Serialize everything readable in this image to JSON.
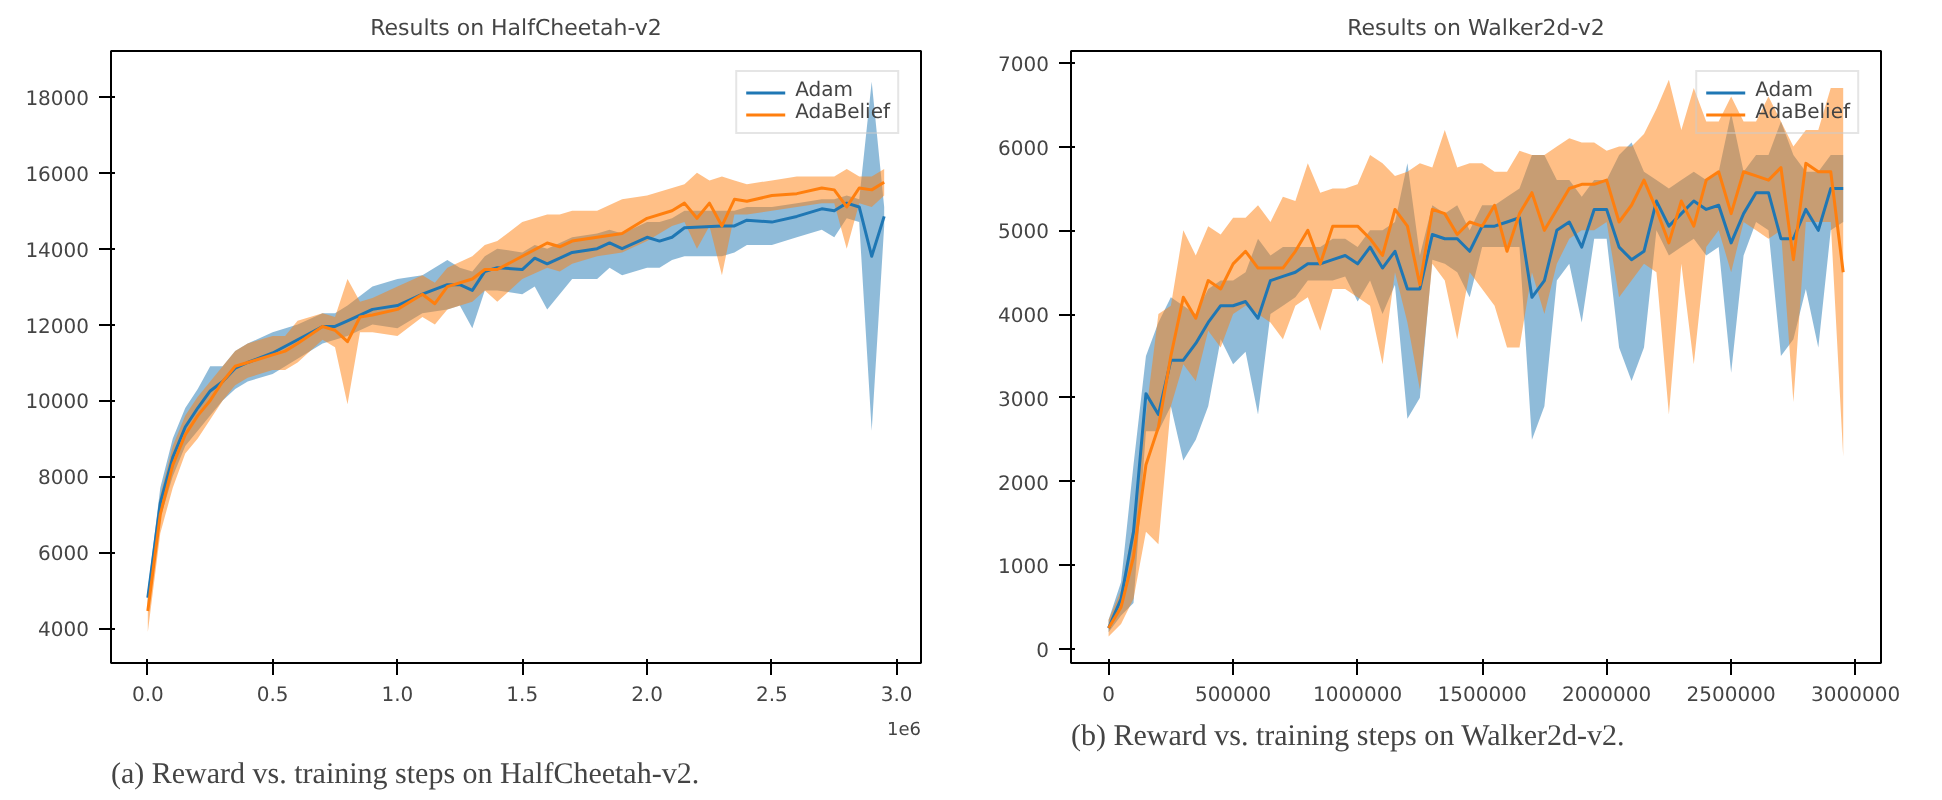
{
  "chart_data": [
    {
      "type": "line",
      "title": "Results on HalfCheetah-v2",
      "xlim": [
        -0.1475,
        3.0975
      ],
      "ylim": [
        3080,
        19210
      ],
      "xticks": [
        {
          "value": 0,
          "label": "0.0"
        },
        0.5,
        {
          "value": 1,
          "label": "1.0"
        },
        1.5,
        {
          "value": 2,
          "label": "2.0"
        },
        2.5,
        {
          "value": 3,
          "label": "3.0"
        }
      ],
      "yticks": [
        4000,
        6000,
        8000,
        10000,
        12000,
        14000,
        16000,
        18000
      ],
      "legend": "top right",
      "grid": false,
      "annotations": [
        "1e6",
        "(a) Reward vs. training steps on HalfCheetah-v2."
      ],
      "series": [
        {
          "name": "Adam",
          "color": "#1f77b4",
          "x": [
            0,
            0.05,
            0.1,
            0.15,
            0.2,
            0.25,
            0.3,
            0.35,
            0.4,
            0.5,
            0.6,
            0.7,
            0.75,
            0.8,
            0.9,
            1.0,
            1.1,
            1.2,
            1.25,
            1.3,
            1.35,
            1.4,
            1.5,
            1.55,
            1.6,
            1.7,
            1.8,
            1.85,
            1.9,
            2.0,
            2.05,
            2.1,
            2.15,
            2.3,
            2.35,
            2.4,
            2.5,
            2.6,
            2.7,
            2.75,
            2.8,
            2.85,
            2.9,
            2.95
          ],
          "values": [
            4800,
            7300,
            8500,
            9300,
            9800,
            10250,
            10500,
            10850,
            11000,
            11250,
            11600,
            11950,
            11950,
            12100,
            12400,
            12500,
            12800,
            13050,
            13050,
            12900,
            13400,
            13500,
            13450,
            13750,
            13600,
            13900,
            14000,
            14150,
            14000,
            14300,
            14200,
            14300,
            14550,
            14600,
            14600,
            14750,
            14700,
            14850,
            15050,
            15000,
            15200,
            15100,
            13800,
            14850
          ],
          "lower": [
            4600,
            6900,
            8000,
            8800,
            9200,
            9600,
            10000,
            10300,
            10500,
            10700,
            11100,
            11500,
            11600,
            11700,
            12000,
            11900,
            12300,
            12400,
            12500,
            11900,
            12900,
            12900,
            12800,
            13000,
            12400,
            13200,
            13200,
            13500,
            13300,
            13500,
            13500,
            13700,
            13800,
            13800,
            13900,
            14100,
            14100,
            14300,
            14500,
            14300,
            14800,
            14700,
            9200,
            14600
          ],
          "upper": [
            5000,
            7700,
            9000,
            9800,
            10300,
            10900,
            10900,
            11300,
            11500,
            11800,
            12000,
            12300,
            12300,
            12500,
            13000,
            13200,
            13300,
            13700,
            13500,
            13400,
            13800,
            14000,
            13900,
            14100,
            14000,
            14300,
            14400,
            14500,
            14400,
            14700,
            14700,
            14800,
            15000,
            15000,
            15000,
            15100,
            15100,
            15200,
            15300,
            15300,
            15400,
            15300,
            18400,
            15100
          ]
        },
        {
          "name": "AdaBelief",
          "color": "#ff7f0e",
          "x": [
            0,
            0.05,
            0.1,
            0.15,
            0.2,
            0.25,
            0.3,
            0.35,
            0.4,
            0.5,
            0.55,
            0.6,
            0.7,
            0.75,
            0.8,
            0.85,
            0.9,
            1.0,
            1.1,
            1.15,
            1.2,
            1.3,
            1.35,
            1.4,
            1.5,
            1.6,
            1.65,
            1.7,
            1.8,
            1.9,
            2.0,
            2.1,
            2.15,
            2.2,
            2.25,
            2.3,
            2.35,
            2.4,
            2.5,
            2.6,
            2.7,
            2.75,
            2.8,
            2.85,
            2.9,
            2.95
          ],
          "values": [
            4450,
            7000,
            8300,
            9100,
            9600,
            10000,
            10500,
            10900,
            11000,
            11200,
            11300,
            11500,
            11950,
            11850,
            11550,
            12200,
            12250,
            12400,
            12800,
            12550,
            13000,
            13200,
            13450,
            13450,
            13800,
            14150,
            14050,
            14200,
            14300,
            14400,
            14800,
            15000,
            15200,
            14800,
            15200,
            14600,
            15300,
            15250,
            15400,
            15450,
            15600,
            15550,
            15100,
            15600,
            15550,
            15750
          ],
          "lower": [
            3900,
            6500,
            7700,
            8600,
            9000,
            9500,
            10000,
            10400,
            10600,
            10800,
            10800,
            11000,
            11600,
            11400,
            9900,
            11800,
            11800,
            11700,
            12200,
            12000,
            12400,
            12600,
            12900,
            12600,
            13200,
            13500,
            13400,
            13600,
            13800,
            13900,
            14200,
            14600,
            14700,
            14000,
            14600,
            13300,
            14900,
            14900,
            15000,
            15100,
            15200,
            15200,
            14000,
            15200,
            15100,
            15400
          ],
          "upper": [
            4900,
            7500,
            8800,
            9600,
            10100,
            10500,
            10900,
            11300,
            11500,
            11700,
            11700,
            12100,
            12300,
            12200,
            13200,
            12600,
            12700,
            13000,
            13300,
            13100,
            13500,
            13800,
            14100,
            14200,
            14700,
            14900,
            14900,
            15000,
            15000,
            15300,
            15400,
            15600,
            15700,
            16000,
            15800,
            15900,
            15800,
            15700,
            15800,
            15900,
            15900,
            15900,
            16100,
            15900,
            15900,
            16100
          ]
        }
      ]
    },
    {
      "type": "line",
      "title": "Results on Walker2d-v2",
      "xlim": [
        -151000,
        3101800
      ],
      "ylim": [
        -167,
        7142
      ],
      "xticks": [
        0,
        500000,
        1000000,
        1500000,
        2000000,
        2500000,
        3000000
      ],
      "yticks": [
        0,
        1000,
        2000,
        3000,
        4000,
        5000,
        6000,
        7000
      ],
      "legend": "top right",
      "grid": false,
      "annotations": [
        "(b) Reward vs. training steps on Walker2d-v2."
      ],
      "x": [
        0,
        50000,
        100000,
        150000,
        200000,
        250000,
        300000,
        350000,
        400000,
        450000,
        500000,
        550000,
        600000,
        650000,
        700000,
        750000,
        800000,
        850000,
        900000,
        950000,
        1000000,
        1050000,
        1100000,
        1150000,
        1200000,
        1250000,
        1300000,
        1350000,
        1400000,
        1450000,
        1500000,
        1550000,
        1600000,
        1650000,
        1700000,
        1750000,
        1800000,
        1850000,
        1900000,
        1950000,
        2000000,
        2050000,
        2100000,
        2150000,
        2200000,
        2250000,
        2300000,
        2350000,
        2400000,
        2450000,
        2500000,
        2550000,
        2600000,
        2650000,
        2700000,
        2750000,
        2800000,
        2850000,
        2900000,
        2950000
      ],
      "series": [
        {
          "name": "Adam",
          "color": "#1f77b4",
          "values": [
            250,
            600,
            1400,
            3050,
            2800,
            3450,
            3450,
            3650,
            3900,
            4100,
            4100,
            4150,
            3950,
            4400,
            4450,
            4500,
            4600,
            4600,
            4650,
            4700,
            4600,
            4800,
            4550,
            4750,
            4300,
            4300,
            4950,
            4900,
            4900,
            4750,
            5050,
            5050,
            5100,
            5150,
            4200,
            4400,
            5000,
            5100,
            4800,
            5250,
            5250,
            4800,
            4650,
            4750,
            5350,
            5050,
            5200,
            5350,
            5250,
            5300,
            4850,
            5200,
            5450,
            5450,
            4900,
            4900,
            5250,
            5000,
            5500,
            5500
          ],
          "lower": [
            200,
            400,
            550,
            2600,
            2600,
            2900,
            2250,
            2500,
            2900,
            3700,
            3400,
            3550,
            2800,
            4000,
            4100,
            4200,
            4400,
            4400,
            4400,
            4450,
            4150,
            4400,
            4000,
            4350,
            2750,
            3000,
            4650,
            4600,
            4500,
            4200,
            4800,
            4800,
            4800,
            4800,
            2500,
            2900,
            4400,
            4600,
            3900,
            4900,
            4900,
            3600,
            3200,
            3600,
            5000,
            4700,
            4800,
            4900,
            4700,
            4800,
            3300,
            4700,
            5100,
            5000,
            3500,
            3700,
            4300,
            3600,
            5000,
            5100
          ],
          "upper": [
            350,
            800,
            2200,
            3500,
            3900,
            4200,
            4100,
            4000,
            4300,
            4400,
            4400,
            4500,
            4900,
            4700,
            4800,
            4800,
            4800,
            4800,
            4900,
            4900,
            4800,
            5000,
            5000,
            5100,
            5800,
            4700,
            5300,
            5200,
            5300,
            5000,
            5300,
            5300,
            5400,
            5500,
            5900,
            5900,
            5600,
            5600,
            5400,
            5600,
            5600,
            5900,
            6050,
            5700,
            5600,
            5500,
            5600,
            5700,
            5600,
            5700,
            6400,
            5700,
            5900,
            5900,
            6300,
            5900,
            5700,
            5700,
            5900,
            5900
          ]
        },
        {
          "name": "AdaBelief",
          "color": "#ff7f0e",
          "values": [
            250,
            500,
            1100,
            2200,
            2650,
            3500,
            4200,
            3950,
            4400,
            4300,
            4600,
            4750,
            4550,
            4550,
            4550,
            4750,
            5000,
            4600,
            5050,
            5050,
            5050,
            4900,
            4700,
            5250,
            5050,
            4350,
            5250,
            5200,
            4950,
            5100,
            5050,
            5300,
            4750,
            5200,
            5450,
            5000,
            5250,
            5500,
            5550,
            5550,
            5600,
            5100,
            5300,
            5600,
            5250,
            4850,
            5350,
            5050,
            5600,
            5700,
            5200,
            5700,
            5650,
            5600,
            5750,
            4650,
            5800,
            5700,
            5700,
            4500
          ],
          "lower": [
            150,
            300,
            600,
            1400,
            1250,
            2900,
            3400,
            3200,
            3800,
            3600,
            4000,
            4100,
            4000,
            3900,
            3700,
            4100,
            4200,
            3800,
            4300,
            4300,
            4200,
            4100,
            3400,
            4500,
            3900,
            3100,
            4600,
            4400,
            3700,
            4500,
            4300,
            4100,
            3600,
            3600,
            4500,
            4000,
            4600,
            4900,
            5000,
            5000,
            5100,
            4200,
            4400,
            4600,
            4500,
            2800,
            4600,
            3400,
            4800,
            5000,
            4500,
            5100,
            5000,
            4900,
            5000,
            2950,
            5100,
            5100,
            5100,
            2300
          ],
          "upper": [
            350,
            700,
            1500,
            2800,
            4000,
            4100,
            5000,
            4700,
            5050,
            4950,
            5150,
            5150,
            5300,
            5100,
            5400,
            5350,
            5800,
            5450,
            5500,
            5500,
            5550,
            5900,
            5800,
            5650,
            5700,
            5800,
            5750,
            6200,
            5750,
            5800,
            5800,
            5700,
            5700,
            5950,
            5900,
            5900,
            6000,
            6100,
            6050,
            6050,
            5950,
            6000,
            6000,
            6150,
            6450,
            6800,
            6200,
            6700,
            6300,
            6300,
            6600,
            6300,
            6300,
            6600,
            6300,
            6000,
            6200,
            6200,
            6700,
            6700
          ]
        }
      ]
    }
  ]
}
